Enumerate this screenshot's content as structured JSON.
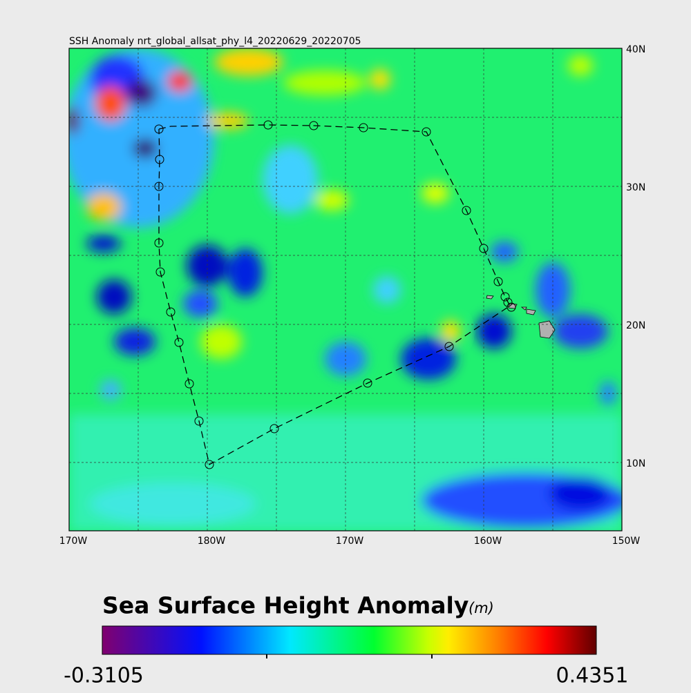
{
  "title": "SSH Anomaly nrt_global_allsat_phy_l4_20220629_20220705",
  "map": {
    "x_labels": [
      "170W",
      "180W",
      "170W",
      "160W",
      "150W"
    ],
    "y_labels": [
      "40N",
      "30N",
      "20N",
      "10N"
    ]
  },
  "colorbar": {
    "title": "Sea Surface Height Anomaly",
    "unit": "(m)",
    "range": [
      -0.3105,
      0.4351
    ]
  }
}
